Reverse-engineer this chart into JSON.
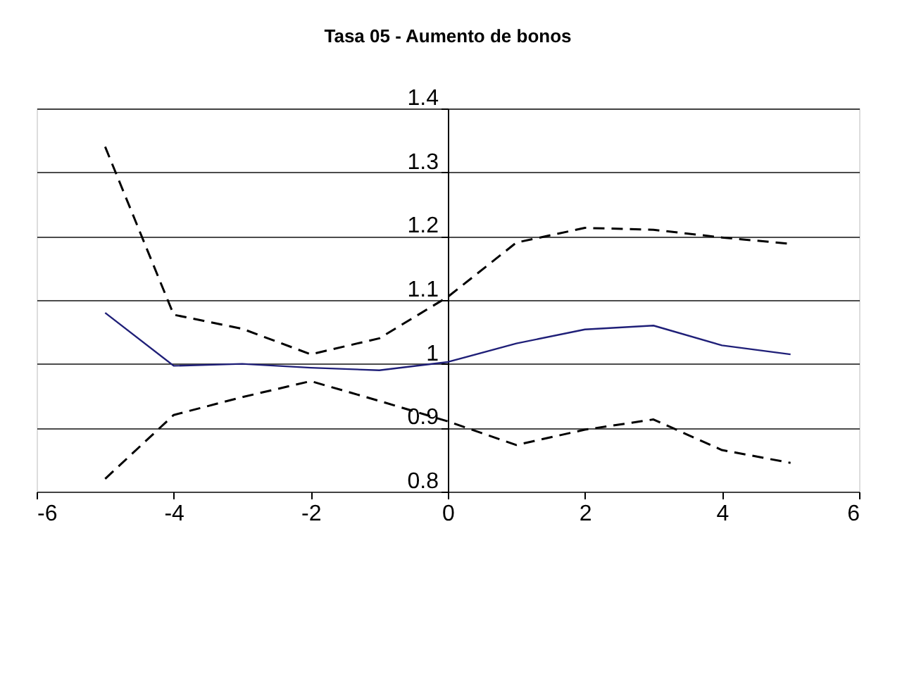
{
  "chart_data": {
    "type": "line",
    "title": "Tasa 05 - Aumento de bonos",
    "x": [
      -5,
      -4,
      -3,
      -2,
      -1,
      0,
      1,
      2,
      3,
      4,
      5
    ],
    "series": [
      {
        "color": "#1f1f78",
        "line_style": "solid",
        "values": [
          1.08,
          0.997,
          1.0,
          0.994,
          0.99,
          1.003,
          1.032,
          1.054,
          1.06,
          1.029,
          1.015
        ]
      },
      {
        "color": "#000000",
        "line_style": "dashed",
        "values": [
          1.34,
          1.077,
          1.055,
          1.015,
          1.04,
          1.105,
          1.19,
          1.213,
          1.21,
          1.198,
          1.188
        ]
      },
      {
        "color": "#000000",
        "line_style": "dashed",
        "values": [
          0.82,
          0.92,
          0.948,
          0.973,
          0.942,
          0.91,
          0.873,
          0.897,
          0.913,
          0.865,
          0.845
        ]
      }
    ],
    "xlim": [
      -6,
      6
    ],
    "xticks": [
      -6,
      -4,
      -2,
      0,
      2,
      4,
      6
    ],
    "ylim": [
      0.8,
      1.4
    ],
    "yticks": [
      0.8,
      0.9,
      1,
      1.1,
      1.2,
      1.3,
      1.4
    ],
    "grid": "y",
    "marker": "none"
  }
}
